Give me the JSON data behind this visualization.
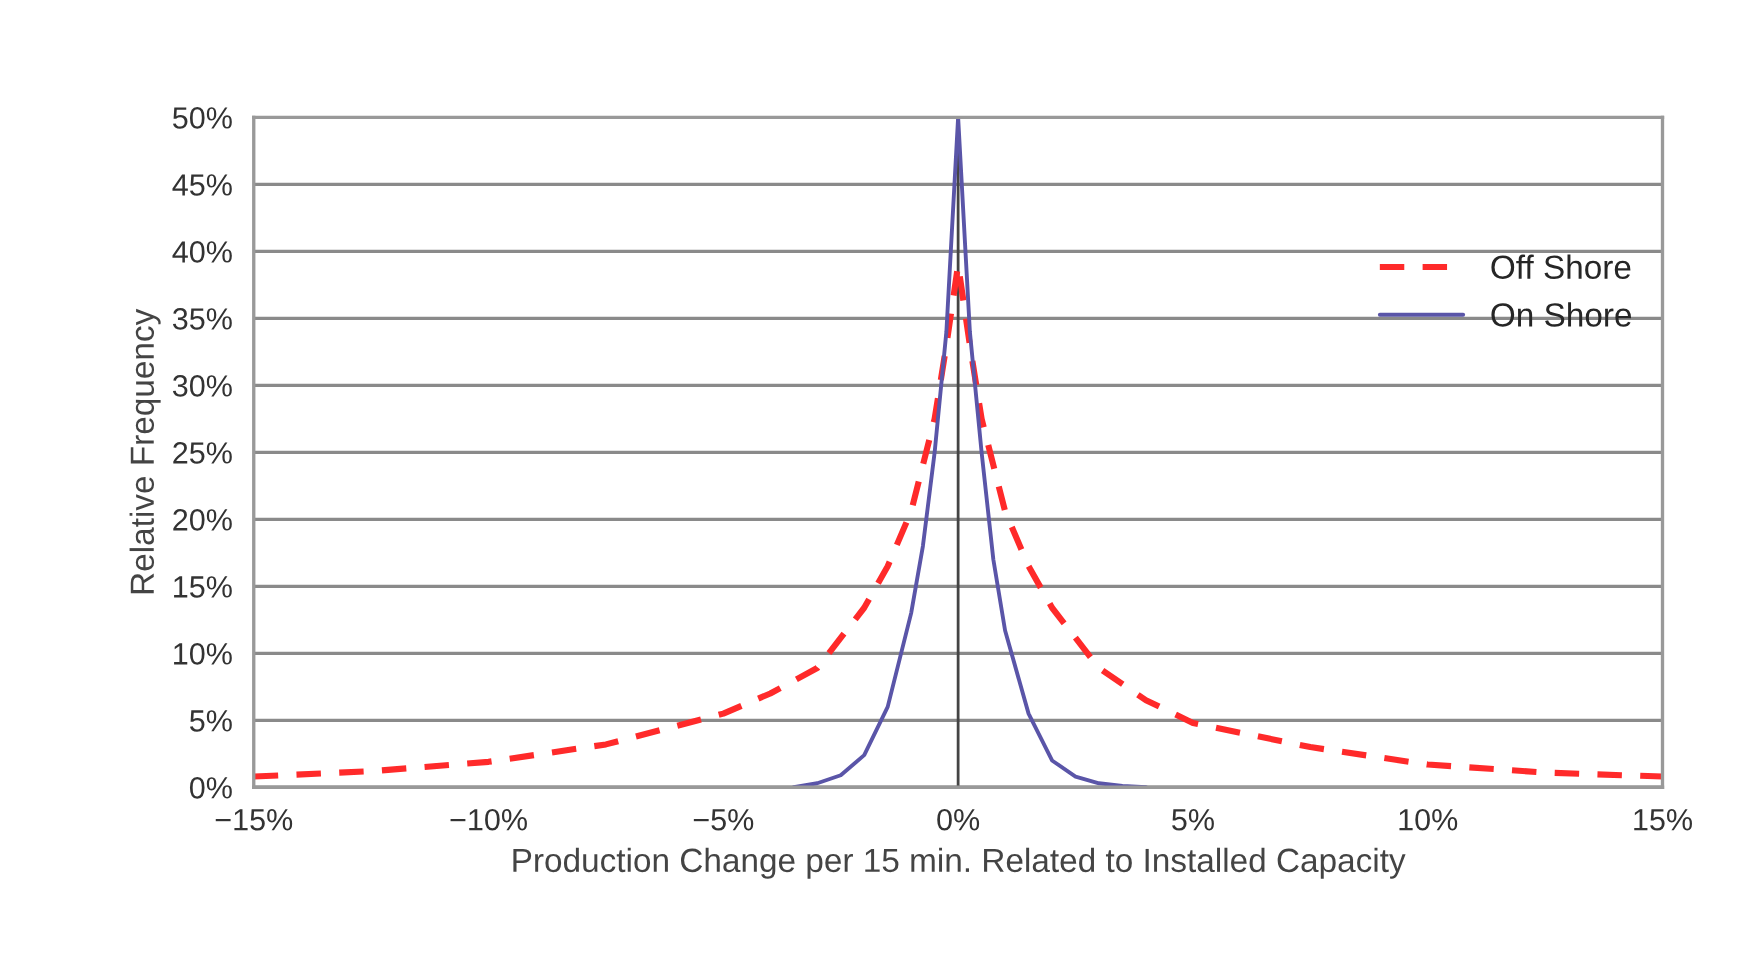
{
  "chart_data": {
    "type": "line",
    "xlabel": "Production Change per 15 min. Related to Installed Capacity",
    "ylabel": "Relative Frequency",
    "series": [
      {
        "name": "Off Shore",
        "color": "#ff2a2a",
        "line_style": "dashed",
        "x": [
          -15,
          -12.5,
          -10,
          -7.5,
          -5,
          -4,
          -3,
          -2,
          -1.5,
          -1,
          -0.5,
          -0.25,
          0,
          0.25,
          0.5,
          1,
          1.5,
          2,
          3,
          4,
          5,
          7.5,
          10,
          12.5,
          15
        ],
        "values": [
          0.8,
          1.2,
          1.9,
          3.2,
          5.5,
          7,
          8.9,
          13.4,
          16.5,
          20.6,
          27.5,
          33,
          39,
          33,
          27.5,
          20.6,
          16.5,
          13.4,
          8.9,
          6.5,
          4.8,
          3,
          1.7,
          1.1,
          0.8
        ]
      },
      {
        "name": "On Shore",
        "color": "#5a55a8",
        "line_style": "solid",
        "x": [
          -3.5,
          -3,
          -2.5,
          -2,
          -1.5,
          -1,
          -0.75,
          -0.5,
          -0.25,
          0,
          0.25,
          0.5,
          0.75,
          1,
          1.5,
          2,
          2.5,
          3,
          3.5,
          4
        ],
        "values": [
          0,
          0.3,
          0.9,
          2.4,
          6,
          13,
          18,
          25,
          34,
          50,
          34,
          25,
          17,
          11.7,
          5.5,
          2,
          0.8,
          0.3,
          0.1,
          0
        ]
      }
    ],
    "xlim": [
      -15,
      15
    ],
    "ylim": [
      0,
      50
    ],
    "xticks": [
      {
        "value": -15,
        "label": "−15%"
      },
      {
        "value": -10,
        "label": "−10%"
      },
      {
        "value": -5,
        "label": "−5%"
      },
      {
        "value": 0,
        "label": "0%"
      },
      {
        "value": 5,
        "label": "5%"
      },
      {
        "value": 10,
        "label": "10%"
      },
      {
        "value": 15,
        "label": "15%"
      }
    ],
    "yticks": [
      {
        "value": 0,
        "label": "0%"
      },
      {
        "value": 5,
        "label": "5%"
      },
      {
        "value": 10,
        "label": "10%"
      },
      {
        "value": 15,
        "label": "15%"
      },
      {
        "value": 20,
        "label": "20%"
      },
      {
        "value": 25,
        "label": "25%"
      },
      {
        "value": 30,
        "label": "30%"
      },
      {
        "value": 35,
        "label": "35%"
      },
      {
        "value": 40,
        "label": "40%"
      },
      {
        "value": 45,
        "label": "45%"
      },
      {
        "value": 50,
        "label": "50%"
      }
    ],
    "ref_lines": [
      {
        "axis": "x",
        "value": 0,
        "color": "#444444"
      }
    ],
    "grid": "y",
    "legend": "top right",
    "marker": "none"
  }
}
